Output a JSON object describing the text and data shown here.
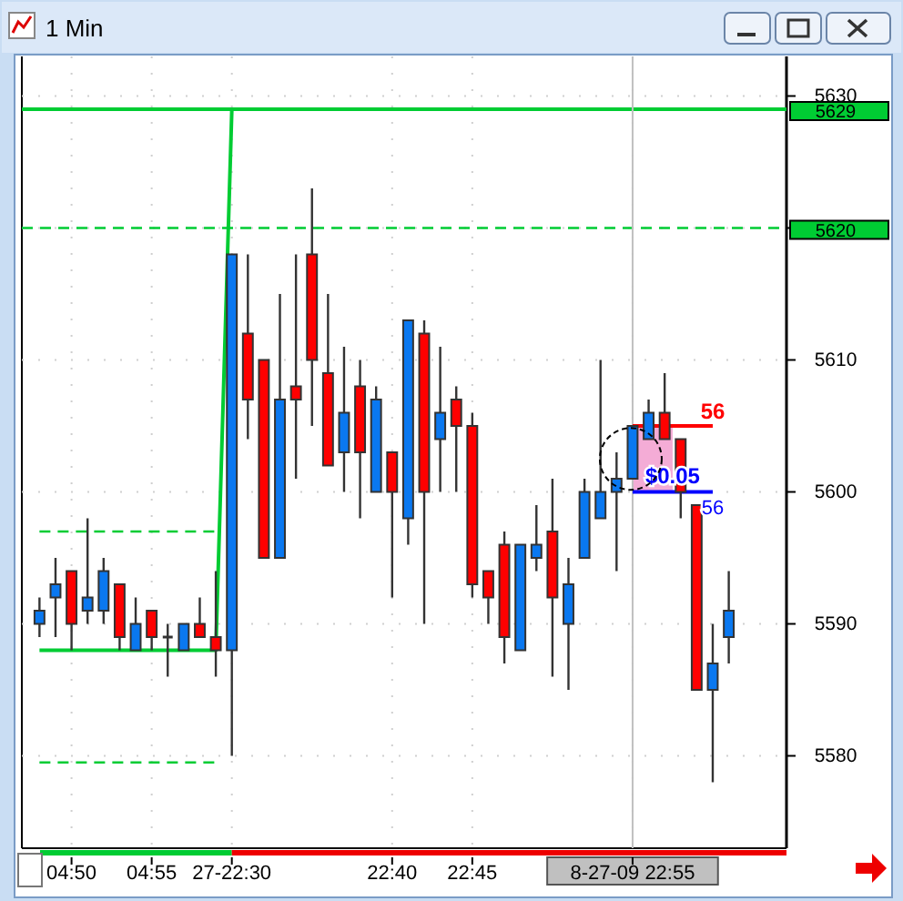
{
  "chart_data": {
    "type": "candlestick",
    "title": "1 Min",
    "categories": [
      null,
      null,
      "04:50",
      null,
      null,
      null,
      null,
      "04:55",
      null,
      null,
      null,
      null,
      "27-22:30",
      null,
      null,
      null,
      null,
      null,
      null,
      null,
      null,
      null,
      "22:40",
      null,
      null,
      null,
      null,
      "22:45",
      null,
      null,
      null,
      null,
      null,
      null,
      null,
      null,
      null,
      "8-27-09 22:55",
      null,
      null,
      null,
      null,
      null,
      null
    ],
    "ylim": [
      5573,
      5633
    ],
    "yticks": [
      5580,
      5590,
      5600,
      5610,
      5620,
      5630
    ],
    "grid": true,
    "legend": false,
    "series": [
      {
        "type": "candlestick",
        "ohlc": [
          [
            5590,
            5592,
            5589,
            5591
          ],
          [
            5592,
            5595,
            5589,
            5593
          ],
          [
            5594,
            5594,
            5588,
            5590
          ],
          [
            5591,
            5598,
            5590,
            5592
          ],
          [
            5591,
            5595,
            5590,
            5594
          ],
          [
            5593,
            5593,
            5588,
            5589
          ],
          [
            5588,
            5592,
            5588,
            5590
          ],
          [
            5591,
            5591,
            5588,
            5589
          ],
          [
            5589,
            5590,
            5586,
            5589
          ],
          [
            5588,
            5590,
            5588,
            5590
          ],
          [
            5590,
            5592,
            5589,
            5589
          ],
          [
            5589,
            5594,
            5586,
            5588
          ],
          [
            5588,
            5618,
            5580,
            5618
          ],
          [
            5612,
            5618,
            5604,
            5607
          ],
          [
            5610,
            5610,
            5595,
            5595
          ],
          [
            5595,
            5615,
            5595,
            5607
          ],
          [
            5608,
            5618,
            5601,
            5607
          ],
          [
            5618,
            5623,
            5605,
            5610
          ],
          [
            5609,
            5615,
            5602,
            5602
          ],
          [
            5603,
            5611,
            5600,
            5606
          ],
          [
            5608,
            5610,
            5598,
            5603
          ],
          [
            5600,
            5608,
            5600,
            5607
          ],
          [
            5603,
            5603,
            5592,
            5600
          ],
          [
            5598,
            5613,
            5596,
            5613
          ],
          [
            5612,
            5613,
            5590,
            5600
          ],
          [
            5604,
            5611,
            5600,
            5606
          ],
          [
            5607,
            5608,
            5600,
            5605
          ],
          [
            5605,
            5606,
            5592,
            5593
          ],
          [
            5594,
            5594,
            5590,
            5592
          ],
          [
            5596,
            5597,
            5587,
            5589
          ],
          [
            5588,
            5596,
            5588,
            5596
          ],
          [
            5595,
            5599,
            5594,
            5596
          ],
          [
            5597,
            5601,
            5586,
            5592
          ],
          [
            5590,
            5595,
            5585,
            5593
          ],
          [
            5595,
            5601,
            5595,
            5600
          ],
          [
            5598,
            5610,
            5598,
            5600
          ],
          [
            5600,
            5603,
            5594,
            5601
          ],
          [
            5601,
            5605,
            5601,
            5605
          ],
          [
            5604,
            5607,
            5604,
            5606
          ],
          [
            5606,
            5609,
            5604,
            5604
          ],
          [
            5604,
            5604,
            5598,
            5600
          ],
          [
            5599,
            5599,
            5585,
            5585
          ],
          [
            5585,
            5590,
            5578,
            5587
          ],
          [
            5589,
            5594,
            5587,
            5591
          ]
        ],
        "colors": [
          "#0a78f0",
          "#0a78f0",
          "#ff0000",
          "#0a78f0",
          "#0a78f0",
          "#ff0000",
          "#0a78f0",
          "#ff0000",
          "#333333",
          "#0a78f0",
          "#ff0000",
          "#ff0000",
          "#0a78f0",
          "#ff0000",
          "#ff0000",
          "#0a78f0",
          "#ff0000",
          "#ff0000",
          "#ff0000",
          "#0a78f0",
          "#ff0000",
          "#0a78f0",
          "#ff0000",
          "#0a78f0",
          "#ff0000",
          "#0a78f0",
          "#ff0000",
          "#ff0000",
          "#ff0000",
          "#ff0000",
          "#0a78f0",
          "#0a78f0",
          "#ff0000",
          "#0a78f0",
          "#0a78f0",
          "#0a78f0",
          "#0a78f0",
          "#0a78f0",
          "#0a78f0",
          "#ff0000",
          "#ff0000",
          "#ff0000",
          "#0a78f0",
          "#0a78f0"
        ]
      },
      {
        "type": "line",
        "color": "#00cc33",
        "line_style": "solid",
        "values": [
          5588,
          5588,
          5588,
          5588,
          5588,
          5588,
          5588,
          5588,
          5588,
          5588,
          5588,
          5588,
          5629,
          null,
          null,
          null,
          null,
          null,
          null,
          null,
          null,
          null,
          null,
          null,
          null,
          null,
          null,
          null,
          null,
          null,
          null,
          null,
          null,
          null,
          null,
          null,
          null,
          null,
          null,
          null,
          null,
          null,
          null,
          null
        ]
      },
      {
        "type": "line",
        "color": "#00cc33",
        "line_style": "dashed",
        "values": [
          5597,
          5597,
          5597,
          5597,
          5597,
          5597,
          5597,
          5597,
          5597,
          5597,
          5597,
          5597,
          null,
          null,
          null,
          null,
          null,
          null,
          null,
          null,
          null,
          null,
          null,
          null,
          null,
          null,
          null,
          null,
          null,
          null,
          null,
          null,
          null,
          null,
          null,
          null,
          null,
          null,
          null,
          null,
          null,
          null,
          null,
          null
        ]
      },
      {
        "type": "line",
        "color": "#00cc33",
        "line_style": "dashed",
        "values": [
          5579.5,
          5579.5,
          5579.5,
          5579.5,
          5579.5,
          5579.5,
          5579.5,
          5579.5,
          5579.5,
          5579.5,
          5579.5,
          5579.5,
          null,
          null,
          null,
          null,
          null,
          null,
          null,
          null,
          null,
          null,
          null,
          null,
          null,
          null,
          null,
          null,
          null,
          null,
          null,
          null,
          null,
          null,
          null,
          null,
          null,
          null,
          null,
          null,
          null,
          null,
          null,
          null
        ]
      },
      {
        "type": "line",
        "color": "#ff0000",
        "line_style": "solid",
        "values": [
          null,
          null,
          null,
          null,
          null,
          null,
          null,
          null,
          null,
          null,
          null,
          null,
          null,
          null,
          null,
          null,
          null,
          null,
          null,
          null,
          null,
          null,
          null,
          null,
          null,
          null,
          null,
          null,
          null,
          null,
          null,
          null,
          null,
          null,
          null,
          null,
          null,
          5605,
          5605,
          5605,
          5605,
          5605,
          5605,
          null
        ]
      },
      {
        "type": "line",
        "color": "#0000ff",
        "line_style": "solid",
        "values": [
          null,
          null,
          null,
          null,
          null,
          null,
          null,
          null,
          null,
          null,
          null,
          null,
          null,
          null,
          null,
          null,
          null,
          null,
          null,
          null,
          null,
          null,
          null,
          null,
          null,
          null,
          null,
          null,
          null,
          null,
          null,
          null,
          null,
          null,
          null,
          null,
          null,
          5600,
          5600,
          5600,
          5600,
          5600,
          5600,
          null
        ]
      }
    ],
    "annotations": [
      "56",
      "$0.05",
      "56"
    ],
    "ref_lines": [
      {
        "axis": "y",
        "value": 5629,
        "label": "5629",
        "color": "#00cc33",
        "line_style": "solid"
      },
      {
        "axis": "y",
        "value": 5620,
        "label": "5620",
        "color": "#00cc33",
        "line_style": "dashed"
      },
      {
        "axis": "x",
        "value": "8-27-09 22:55",
        "color": "#c0c0c0",
        "line_style": "solid"
      }
    ]
  }
}
